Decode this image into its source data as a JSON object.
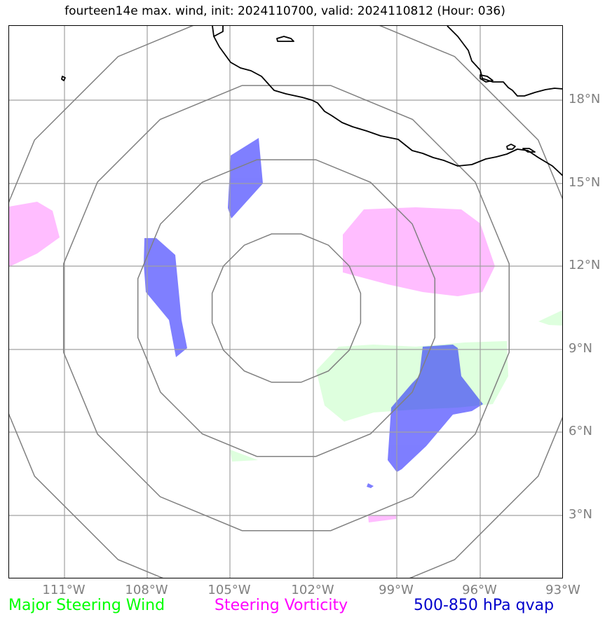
{
  "title": "fourteen14e max. wind, init: 2024110700, valid: 2024110812 (Hour: 036)",
  "map": {
    "lat_labels": [
      "18°N",
      "15°N",
      "12°N",
      "9°N",
      "6°N",
      "3°N"
    ],
    "lon_labels": [
      "111°W",
      "108°W",
      "105°W",
      "102°W",
      "99°W",
      "96°W",
      "93°W"
    ],
    "lon_range": [
      -113,
      -93
    ],
    "lat_range": [
      1,
      21
    ],
    "storm_center": {
      "lon": -103.0,
      "lat": 10.8
    },
    "range_rings": 4
  },
  "legend": [
    {
      "label": "Major Steering Wind",
      "color": "#00ff00"
    },
    {
      "label": "Steering Vorticity",
      "color": "#ff00ff"
    },
    {
      "label": "500-850 hPa qvap",
      "color": "#0000cc"
    }
  ],
  "colors": {
    "wind_fill": "#ccffcc",
    "vorticity_fill": "#ff99ff",
    "qvap_fill": "#0000ff",
    "grid": "#a0a0a0",
    "ring": "#808080",
    "coast": "#000000"
  }
}
